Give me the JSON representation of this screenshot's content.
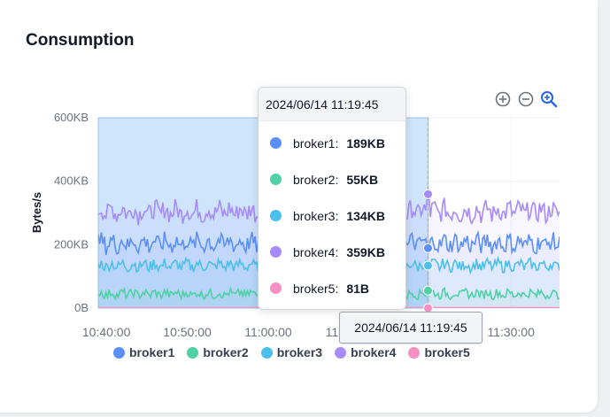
{
  "card": {
    "title": "Consumption"
  },
  "chart_data": {
    "type": "line",
    "title": "Consumption",
    "xlabel": "",
    "ylabel": "Bytes/s",
    "ytick_labels": [
      "600KB",
      "400KB",
      "200KB",
      "0B"
    ],
    "xtick_labels": [
      "10:40:00",
      "10:50:00",
      "11:00:00",
      "11:10:00",
      "11:30:00"
    ],
    "y_unit": "KB",
    "ylim": [
      0,
      600
    ],
    "xlim": [
      "2024/06/14 10:39:00",
      "2024/06/14 11:36:00"
    ],
    "legend_position": "bottom",
    "grid": true,
    "series": [
      {
        "name": "broker1",
        "color": "#5b8ff9",
        "mean": 205,
        "noise": 28,
        "selected_value": 189
      },
      {
        "name": "broker2",
        "color": "#4fd1a5",
        "mean": 45,
        "noise": 14,
        "selected_value": 55
      },
      {
        "name": "broker3",
        "color": "#4bc0ea",
        "mean": 135,
        "noise": 18,
        "selected_value": 134
      },
      {
        "name": "broker4",
        "color": "#a78bfa",
        "mean": 305,
        "noise": 32,
        "selected_value": 359
      },
      {
        "name": "broker5",
        "color": "#f58fc4",
        "mean": 1,
        "noise": 0,
        "selected_value": 0.08
      }
    ],
    "selection": {
      "from": "2024/06/14 10:39:00",
      "to": "2024/06/14 11:19:45"
    },
    "hover_time": "2024/06/14 11:19:45"
  },
  "tooltip": {
    "title": "2024/06/14 11:19:45",
    "rows": [
      {
        "name": "broker1:",
        "value": "189KB",
        "color": "#5b8ff9"
      },
      {
        "name": "broker2:",
        "value": "55KB",
        "color": "#4fd1a5"
      },
      {
        "name": "broker3:",
        "value": "134KB",
        "color": "#4bc0ea"
      },
      {
        "name": "broker4:",
        "value": "359KB",
        "color": "#a78bfa"
      },
      {
        "name": "broker5:",
        "value": "81B",
        "color": "#f58fc4"
      }
    ]
  },
  "axis_pointer": {
    "label": "2024/06/14 11:19:45"
  },
  "toolbar": {
    "zoom_in_icon": "zoom-in-icon",
    "zoom_out_icon": "zoom-out-icon",
    "zoom_select_icon": "magnifier-icon",
    "icon_color": "#6b7280",
    "active_color": "#2563eb"
  },
  "legend": [
    {
      "label": "broker1",
      "color": "#5b8ff9"
    },
    {
      "label": "broker2",
      "color": "#4fd1a5"
    },
    {
      "label": "broker3",
      "color": "#4bc0ea"
    },
    {
      "label": "broker4",
      "color": "#a78bfa"
    },
    {
      "label": "broker5",
      "color": "#f58fc4"
    }
  ]
}
